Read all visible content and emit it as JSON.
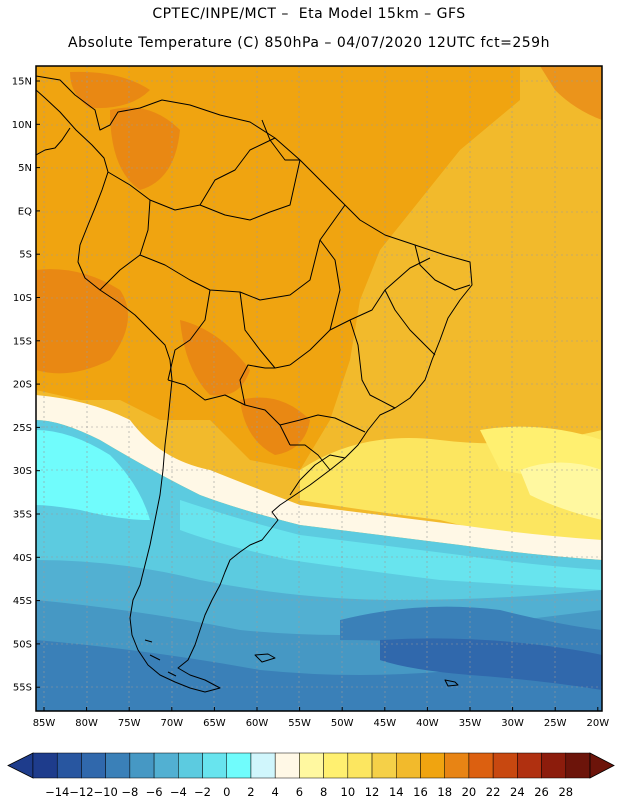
{
  "title_line1": "CPTEC/INPE/MCT –  Eta Model 15km – GFS",
  "title_line2": "Absolute Temperature (C) 850hPa – 04/07/2020 12UTC fct=259h",
  "lat_labels": [
    "15N",
    "10N",
    "5N",
    "EQ",
    "5S",
    "10S",
    "15S",
    "20S",
    "25S",
    "30S",
    "35S",
    "40S",
    "45S",
    "50S",
    "55S"
  ],
  "lon_labels": [
    "85W",
    "80W",
    "75W",
    "70W",
    "65W",
    "60W",
    "55W",
    "50W",
    "45W",
    "40W",
    "35W",
    "30W",
    "25W",
    "20W"
  ],
  "colorbar": {
    "labels": [
      "-14",
      "-12",
      "-10",
      "-8",
      "-6",
      "-4",
      "-2",
      "0",
      "2",
      "4",
      "6",
      "8",
      "10",
      "12",
      "14",
      "16",
      "18",
      "20",
      "22",
      "24",
      "26",
      "28"
    ],
    "colors": [
      "#1e3c8c",
      "#2856a0",
      "#3068ac",
      "#3a80b8",
      "#4698c4",
      "#52b0d2",
      "#5ccbe0",
      "#68e4ee",
      "#70fcfc",
      "#d0f6fc",
      "#fff8e6",
      "#fff8a0",
      "#fff070",
      "#fce660",
      "#f5d048",
      "#f2ba2c",
      "#f0a410",
      "#e88414",
      "#dc6010",
      "#c84810",
      "#b03010",
      "#8c1c0c",
      "#6c140a"
    ],
    "low_color": "#1e3c8c",
    "high_color": "#6c140a"
  }
}
